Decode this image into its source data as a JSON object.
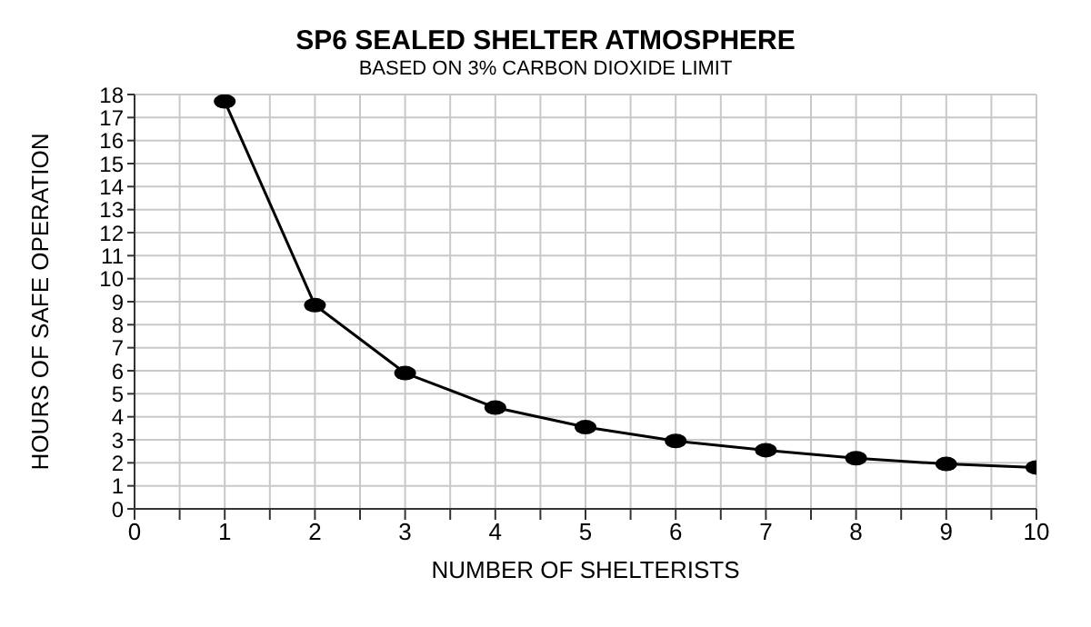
{
  "chart_data": {
    "type": "line",
    "title": "SP6 SEALED SHELTER ATMOSPHERE",
    "subtitle": "BASED ON 3% CARBON DIOXIDE LIMIT",
    "xlabel": "NUMBER OF SHELTERISTS",
    "ylabel": "HOURS  OF SAFE OPERATION",
    "x": [
      1,
      2,
      3,
      4,
      5,
      6,
      7,
      8,
      9,
      10
    ],
    "series": [
      {
        "color": "#000000",
        "values": [
          17.7,
          8.85,
          5.9,
          4.4,
          3.55,
          2.95,
          2.55,
          2.2,
          1.95,
          1.8
        ]
      }
    ],
    "xlim": [
      0,
      10
    ],
    "xticks": [
      0,
      {
        "value": 0.5,
        "label": null
      },
      1,
      {
        "value": 1.5,
        "label": null
      },
      2,
      {
        "value": 2.5,
        "label": null
      },
      3,
      {
        "value": 3.5,
        "label": null
      },
      4,
      {
        "value": 4.5,
        "label": null
      },
      5,
      {
        "value": 5.5,
        "label": null
      },
      6,
      {
        "value": 6.5,
        "label": null
      },
      7,
      {
        "value": 7.5,
        "label": null
      },
      8,
      {
        "value": 8.5,
        "label": null
      },
      9,
      {
        "value": 9.5,
        "label": null
      },
      10
    ],
    "ylim": [
      0,
      18
    ],
    "yticks": [
      0,
      1,
      2,
      3,
      4,
      5,
      6,
      7,
      8,
      9,
      10,
      11,
      12,
      13,
      14,
      15,
      16,
      17,
      18
    ],
    "grid": true,
    "marker": "circle",
    "line_style": "solid"
  }
}
